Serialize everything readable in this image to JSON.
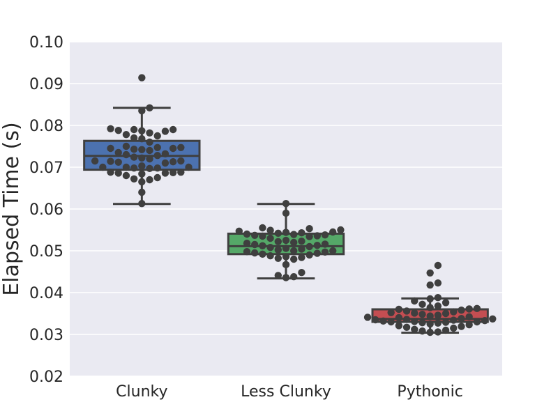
{
  "chart_data": {
    "type": "box",
    "title": "",
    "xlabel": "",
    "ylabel": "Elapsed Time (s)",
    "ylim": [
      0.02,
      0.1
    ],
    "yticks": [
      "0.02",
      "0.03",
      "0.04",
      "0.05",
      "0.06",
      "0.07",
      "0.08",
      "0.09",
      "0.10"
    ],
    "grid": true,
    "categories": [
      "Clunky",
      "Less Clunky",
      "Pythonic"
    ],
    "series": [
      {
        "category": "Clunky",
        "color": "#4c72b0",
        "whisker_low": 0.0612,
        "q1": 0.0694,
        "median": 0.0727,
        "q3": 0.0763,
        "whisker_high": 0.0842,
        "points": [
          0.0914,
          0.0842,
          0.0835,
          0.079,
          0.0787,
          0.0792,
          0.0786,
          0.0788,
          0.079,
          0.0778,
          0.0782,
          0.0775,
          0.077,
          0.0768,
          0.076,
          0.075,
          0.0747,
          0.0745,
          0.0742,
          0.074,
          0.0745,
          0.0743,
          0.0747,
          0.0735,
          0.0732,
          0.073,
          0.0728,
          0.0724,
          0.072,
          0.0722,
          0.0715,
          0.0715,
          0.0713,
          0.0712,
          0.071,
          0.0714,
          0.0703,
          0.07,
          0.0698,
          0.07,
          0.0698,
          0.0697,
          0.07,
          0.0688,
          0.0686,
          0.0687,
          0.0684,
          0.0686,
          0.0688,
          0.068,
          0.0675,
          0.0672,
          0.067,
          0.0665,
          0.064,
          0.0613
        ]
      },
      {
        "category": "Less Clunky",
        "color": "#55a868",
        "whisker_low": 0.0434,
        "q1": 0.0492,
        "median": 0.0511,
        "q3": 0.0541,
        "whisker_high": 0.0612,
        "points": [
          0.0613,
          0.059,
          0.0555,
          0.0553,
          0.055,
          0.0549,
          0.0547,
          0.0545,
          0.0544,
          0.0543,
          0.0542,
          0.054,
          0.0539,
          0.0538,
          0.0537,
          0.0536,
          0.0535,
          0.0534,
          0.053,
          0.0525,
          0.0523,
          0.0522,
          0.052,
          0.0518,
          0.0516,
          0.0515,
          0.0513,
          0.0512,
          0.051,
          0.0508,
          0.0506,
          0.0504,
          0.0502,
          0.05,
          0.05,
          0.0498,
          0.0497,
          0.0495,
          0.0494,
          0.0492,
          0.049,
          0.0488,
          0.0486,
          0.0484,
          0.0482,
          0.048,
          0.0467,
          0.0448,
          0.0441,
          0.0438,
          0.0436
        ]
      },
      {
        "category": "Pythonic",
        "color": "#c44e52",
        "whisker_low": 0.0304,
        "q1": 0.033,
        "median": 0.0337,
        "q3": 0.036,
        "whisker_high": 0.0386,
        "points": [
          0.0465,
          0.0447,
          0.0423,
          0.0418,
          0.0388,
          0.0385,
          0.038,
          0.0376,
          0.0372,
          0.0368,
          0.0364,
          0.0362,
          0.0361,
          0.036,
          0.0358,
          0.0356,
          0.0354,
          0.0352,
          0.0351,
          0.035,
          0.0348,
          0.0346,
          0.0344,
          0.0342,
          0.0341,
          0.034,
          0.0338,
          0.0337,
          0.0336,
          0.0335,
          0.0334,
          0.0333,
          0.0332,
          0.0331,
          0.033,
          0.033,
          0.0329,
          0.0328,
          0.0327,
          0.0325,
          0.0323,
          0.0321,
          0.0319,
          0.0317,
          0.0315,
          0.0312,
          0.031,
          0.0308,
          0.0306,
          0.0305
        ]
      }
    ]
  }
}
